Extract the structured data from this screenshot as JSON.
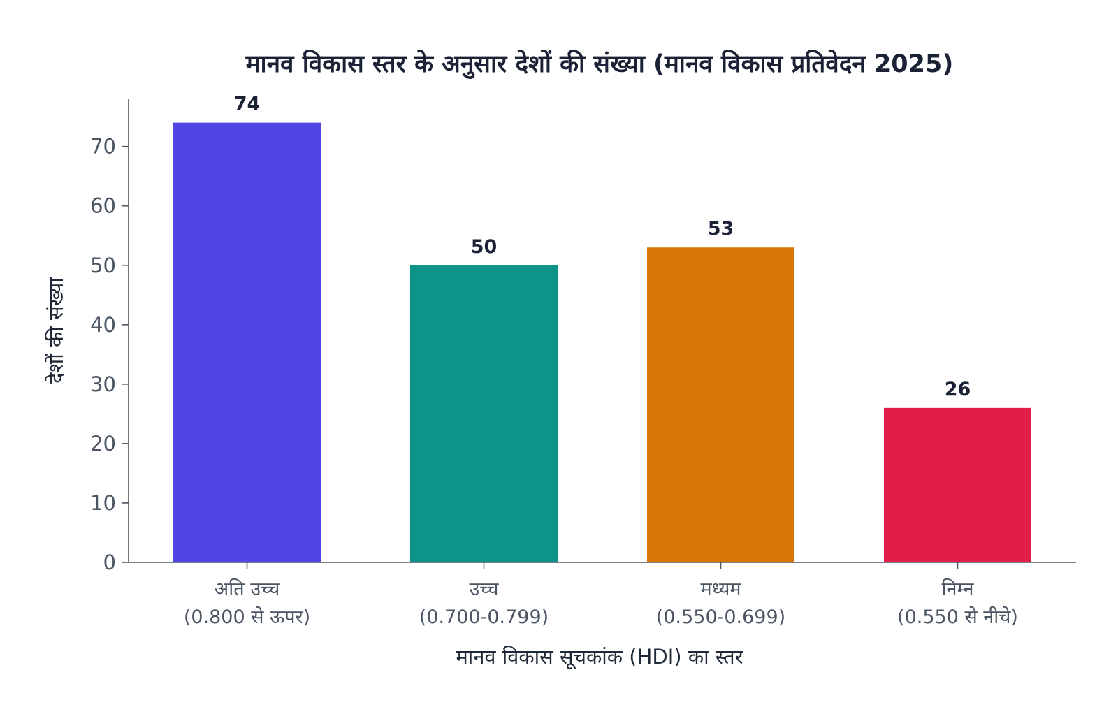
{
  "chart_data": {
    "type": "bar",
    "title": "मानव विकास स्तर के अनुसार देशों की संख्या (मानव विकास प्रतिवेदन 2025)",
    "xlabel": "मानव विकास सूचकांक (HDI) का स्तर",
    "ylabel": "देशों की संख्या",
    "categories": [
      [
        "अति उच्च",
        "(0.800 से ऊपर)"
      ],
      [
        "उच्च",
        "(0.700-0.799)"
      ],
      [
        "मध्यम",
        "(0.550-0.699)"
      ],
      [
        "निम्न",
        "(0.550 से नीचे)"
      ]
    ],
    "values": [
      74,
      50,
      53,
      26
    ],
    "colors": [
      "#4f46e5",
      "#0d9488",
      "#d97706",
      "#e11d48"
    ],
    "ylim": [
      0,
      78
    ],
    "yticks": [
      0,
      10,
      20,
      30,
      40,
      50,
      60,
      70
    ],
    "grid": false,
    "legend": "none"
  }
}
